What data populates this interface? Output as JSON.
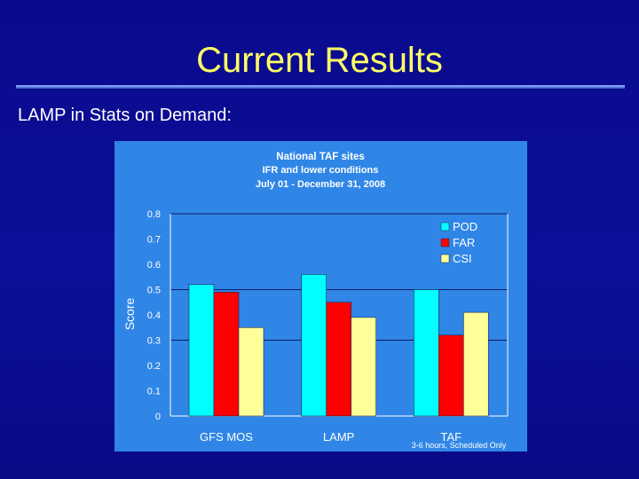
{
  "slide": {
    "title": "Current Results",
    "subtitle": "LAMP in Stats on Demand:"
  },
  "colors": {
    "background": "#0a0a8c",
    "title": "#ffff66",
    "chart_background": "#2f86e6",
    "POD": "#00ffff",
    "FAR": "#ff0000",
    "CSI": "#ffff99"
  },
  "chart_data": {
    "type": "bar",
    "title": "National TAF sites",
    "subtitle": [
      "IFR and lower conditions",
      "July 01 - December 31, 2008"
    ],
    "xlabel": "",
    "ylabel": "Score",
    "ylim": [
      0,
      0.8
    ],
    "yticks": [
      "0",
      "0.1",
      "0.2",
      "0.3",
      "0.4",
      "0.5",
      "0.6",
      "0.7",
      "0.8"
    ],
    "gridlines": [
      0.3,
      0.5,
      0.8
    ],
    "categories": [
      "GFS MOS",
      "LAMP",
      "TAF"
    ],
    "series": [
      {
        "name": "POD",
        "values": [
          0.52,
          0.56,
          0.5
        ]
      },
      {
        "name": "FAR",
        "values": [
          0.49,
          0.45,
          0.32
        ]
      },
      {
        "name": "CSI",
        "values": [
          0.35,
          0.39,
          0.41
        ]
      }
    ],
    "legend_position": "top-right",
    "annotation": "3-6 hours, Scheduled Only"
  }
}
